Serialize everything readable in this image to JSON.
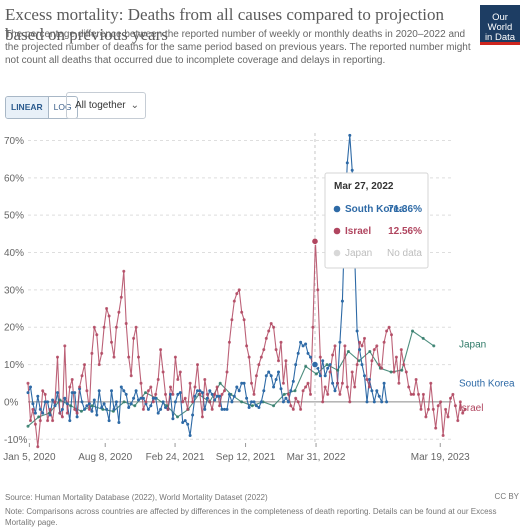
{
  "header": {
    "title": "Excess mortality: Deaths from all causes compared to projection based on previous years",
    "subtitle": "The percentage difference between the reported number of weekly or monthly deaths in 2020–2022 and the projected number of deaths for the same period based on previous years. The reported number might not count all deaths that occurred due to incomplete coverage and delays in reporting.",
    "logo_line1": "Our World",
    "logo_line2": "in Data"
  },
  "controls": {
    "linear_label": "LINEAR",
    "log_label": "LOG",
    "select_value": "All together",
    "select_chevron": "⌄"
  },
  "colors": {
    "south_korea": "#2e6aa6",
    "israel": "#b0455f",
    "japan": "#2f7a68",
    "logo_bg": "#1d3d63",
    "logo_bar": "#ce261e"
  },
  "tooltip": {
    "date": "Mar 27, 2022",
    "rows": [
      {
        "name": "South Korea",
        "value": "71.36%"
      },
      {
        "name": "Israel",
        "value": "12.56%"
      },
      {
        "name": "Japan",
        "value": "No data"
      }
    ]
  },
  "chart_data": {
    "type": "line",
    "x_label_ticks": [
      "Jan 5, 2020",
      "Aug 8, 2020",
      "Feb 24, 2021",
      "Sep 12, 2021",
      "Mar 31, 2022",
      "Mar 19, 2023"
    ],
    "x_tick_months": [
      0.13,
      7.23,
      13.77,
      20.37,
      26.97,
      38.6
    ],
    "xlim_months": [
      0,
      39.7
    ],
    "y_ticks": [
      "70%",
      "60%",
      "50%",
      "40%",
      "30%",
      "20%",
      "10%",
      "0%",
      "-10%"
    ],
    "y_tick_values": [
      70,
      60,
      50,
      40,
      30,
      20,
      10,
      0,
      -10
    ],
    "ylim": [
      -11,
      72
    ],
    "grid": true,
    "hover_month": 26.87,
    "series": [
      {
        "name": "Japan",
        "key": "japan",
        "step": "month",
        "values": [
          -6.5,
          -4,
          -3,
          0.5,
          -1,
          -2.5,
          -1,
          -2,
          -2.5,
          0,
          -1,
          2.5,
          1,
          -1,
          -4,
          -2,
          2,
          0,
          5,
          2,
          0,
          -1,
          0,
          -1,
          2,
          3,
          9.5,
          7.5,
          10,
          8.5,
          13.5,
          11,
          13.5,
          9,
          8,
          8.5,
          19,
          17,
          15
        ]
      },
      {
        "name": "South Korea",
        "key": "south_korea",
        "step": "week",
        "values": [
          2.5,
          4,
          -0.5,
          -3,
          1.5,
          -2,
          -3,
          0,
          0,
          -3.5,
          0.5,
          -1,
          2.5,
          -3,
          -2,
          1,
          -0.5,
          -5,
          2.5,
          2.5,
          -4,
          3.5,
          0,
          -2,
          -1,
          -0.5,
          -2.5,
          0.5,
          -3.5,
          3,
          -1.5,
          -0.5,
          -2,
          -5,
          3,
          -2,
          0,
          -5.5,
          4,
          3,
          2,
          -1.5,
          -0.5,
          1,
          3,
          0.5,
          1,
          1,
          -0.5,
          -2,
          -1,
          1,
          1,
          -3,
          -2,
          0,
          -1.5,
          -2,
          2,
          -4.5,
          0,
          2,
          2.5,
          -5.5,
          -5,
          -6,
          -9,
          -3.5,
          1.5,
          3,
          3,
          2.5,
          -2,
          1,
          3,
          2,
          0.5,
          1.5,
          1.5,
          -2,
          -2,
          -2,
          2,
          0,
          1.5,
          4,
          3,
          5,
          5,
          1,
          -1.5,
          0,
          0,
          -1,
          -1.5,
          0,
          3,
          7,
          8,
          7,
          4,
          6,
          8,
          3.5,
          0,
          1,
          0,
          3,
          5.5,
          10,
          13,
          16,
          15,
          15.5,
          13,
          12,
          10,
          10,
          9,
          7,
          11,
          7,
          9,
          10,
          5,
          3,
          5,
          16,
          27,
          49,
          64,
          71.36,
          62,
          39,
          19,
          14,
          10,
          7,
          0,
          6,
          3,
          0,
          3,
          1.5,
          0,
          5,
          0
        ]
      },
      {
        "name": "Israel",
        "key": "israel",
        "step": "week",
        "values": [
          5,
          -5,
          -2,
          -6,
          -12,
          -5,
          3,
          2,
          -5,
          -2,
          -5,
          0,
          12,
          -3,
          -4,
          15,
          -3,
          4,
          6,
          -2,
          -3,
          4,
          7,
          10,
          3,
          -2,
          13,
          20,
          18,
          10,
          13,
          20,
          25,
          23,
          16,
          12,
          20,
          24,
          28,
          35,
          21,
          12,
          7,
          17,
          20,
          12,
          5,
          -2,
          0,
          3,
          4,
          0,
          2,
          6,
          14,
          8,
          2,
          -2,
          4,
          2,
          12,
          6,
          8,
          0,
          1,
          -2,
          5,
          0,
          4,
          10,
          2,
          -4,
          6,
          2,
          0,
          -2,
          2,
          4,
          -1,
          2,
          3,
          8,
          16,
          22,
          27,
          29,
          30,
          24,
          22,
          15,
          12,
          5,
          2,
          7,
          10,
          12,
          14,
          17,
          19,
          21,
          20,
          14,
          11,
          16,
          5,
          11,
          2,
          -1,
          -2,
          1,
          0,
          -2,
          3,
          4,
          5,
          2,
          20,
          43,
          30,
          12,
          0,
          4,
          2,
          8,
          12.56,
          15,
          5,
          2,
          5,
          15,
          4,
          0,
          8,
          4,
          10,
          16,
          15,
          17,
          6,
          4,
          11,
          14,
          15,
          10,
          9,
          16,
          19,
          20,
          18,
          8,
          12,
          5,
          14,
          10,
          8,
          4,
          2,
          2,
          6,
          2,
          -2,
          2,
          -4,
          -2,
          5,
          -2,
          -7,
          -1,
          0,
          -9,
          -2,
          -4,
          1,
          2,
          -1,
          -5,
          0,
          -3,
          -2
        ]
      }
    ],
    "end_labels": [
      "Japan",
      "South Korea",
      "Israel"
    ]
  },
  "footer": {
    "source": "Source: Human Mortality Database (2022), World Mortality Dataset (2022)",
    "note": "Note: Comparisons across countries are affected by differences in the completeness of death reporting. Details can be found at our Excess Mortality page.",
    "license": "CC BY"
  }
}
